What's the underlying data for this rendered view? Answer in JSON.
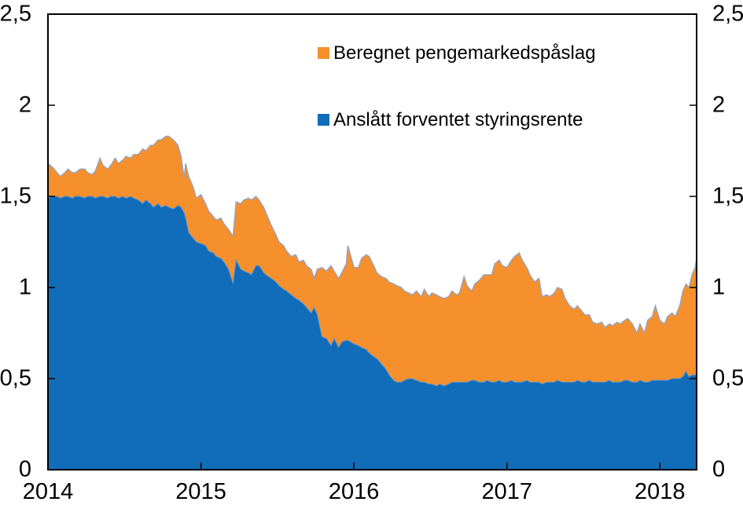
{
  "chart_data": {
    "type": "area",
    "stacked": true,
    "title": "",
    "x_unit": "decimal_year",
    "xlim": [
      2014,
      2018.24
    ],
    "ylim": [
      0,
      2.5
    ],
    "x_ticks": [
      2015,
      2016,
      2017,
      2018
    ],
    "x_tick_labels": [
      "2014",
      "2015",
      "2016",
      "2017",
      "2018"
    ],
    "x_tick_label_positions": [
      2014,
      2015,
      2016,
      2017,
      2018
    ],
    "y_ticks": [
      0.5,
      1,
      1.5,
      2
    ],
    "y_tick_labels": [
      "0",
      "0,5",
      "1",
      "1,5",
      "2",
      "2,5"
    ],
    "y_tick_label_values": [
      0,
      0.5,
      1,
      1.5,
      2,
      2.5
    ],
    "grid": false,
    "legend_position": "top-center-inside",
    "series": [
      {
        "name": "Anslått forventet styringsrente",
        "color": "#116CB9",
        "edge_color": "#4E93D3",
        "role": "base"
      },
      {
        "name": "Beregnet pengemarkedspåslag",
        "color": "#F6902D",
        "edge_color": "#97A3BB",
        "role": "stacked_on_base"
      }
    ],
    "point_format": [
      "year",
      "anslatt_forventet_styringsrente",
      "total_pengemarkedsrente"
    ],
    "points": [
      [
        2014.0,
        1.49,
        1.68
      ],
      [
        2014.03,
        1.5,
        1.66
      ],
      [
        2014.06,
        1.5,
        1.63
      ],
      [
        2014.08,
        1.49,
        1.61
      ],
      [
        2014.11,
        1.5,
        1.63
      ],
      [
        2014.13,
        1.5,
        1.65
      ],
      [
        2014.16,
        1.49,
        1.63
      ],
      [
        2014.18,
        1.5,
        1.63
      ],
      [
        2014.21,
        1.5,
        1.65
      ],
      [
        2014.24,
        1.49,
        1.65
      ],
      [
        2014.26,
        1.5,
        1.63
      ],
      [
        2014.29,
        1.5,
        1.62
      ],
      [
        2014.31,
        1.49,
        1.64
      ],
      [
        2014.34,
        1.5,
        1.71
      ],
      [
        2014.36,
        1.5,
        1.67
      ],
      [
        2014.39,
        1.49,
        1.65
      ],
      [
        2014.41,
        1.5,
        1.67
      ],
      [
        2014.44,
        1.5,
        1.71
      ],
      [
        2014.46,
        1.49,
        1.68
      ],
      [
        2014.49,
        1.5,
        1.7
      ],
      [
        2014.51,
        1.49,
        1.72
      ],
      [
        2014.54,
        1.5,
        1.71
      ],
      [
        2014.56,
        1.49,
        1.73
      ],
      [
        2014.59,
        1.48,
        1.73
      ],
      [
        2014.62,
        1.46,
        1.76
      ],
      [
        2014.64,
        1.48,
        1.75
      ],
      [
        2014.67,
        1.46,
        1.78
      ],
      [
        2014.69,
        1.44,
        1.78
      ],
      [
        2014.72,
        1.46,
        1.81
      ],
      [
        2014.74,
        1.44,
        1.81
      ],
      [
        2014.77,
        1.45,
        1.83
      ],
      [
        2014.79,
        1.44,
        1.83
      ],
      [
        2014.82,
        1.43,
        1.81
      ],
      [
        2014.85,
        1.45,
        1.78
      ],
      [
        2014.87,
        1.44,
        1.72
      ],
      [
        2014.89,
        1.41,
        1.6
      ],
      [
        2014.9,
        1.38,
        1.68
      ],
      [
        2014.92,
        1.3,
        1.61
      ],
      [
        2014.95,
        1.27,
        1.55
      ],
      [
        2014.97,
        1.25,
        1.49
      ],
      [
        2015.0,
        1.24,
        1.51
      ],
      [
        2015.03,
        1.23,
        1.46
      ],
      [
        2015.05,
        1.2,
        1.42
      ],
      [
        2015.08,
        1.19,
        1.39
      ],
      [
        2015.1,
        1.17,
        1.37
      ],
      [
        2015.13,
        1.16,
        1.38
      ],
      [
        2015.15,
        1.14,
        1.35
      ],
      [
        2015.18,
        1.1,
        1.32
      ],
      [
        2015.21,
        1.02,
        1.28
      ],
      [
        2015.23,
        1.15,
        1.47
      ],
      [
        2015.26,
        1.1,
        1.46
      ],
      [
        2015.28,
        1.09,
        1.48
      ],
      [
        2015.31,
        1.08,
        1.49
      ],
      [
        2015.33,
        1.07,
        1.48
      ],
      [
        2015.36,
        1.12,
        1.5
      ],
      [
        2015.38,
        1.12,
        1.48
      ],
      [
        2015.41,
        1.08,
        1.44
      ],
      [
        2015.44,
        1.06,
        1.38
      ],
      [
        2015.46,
        1.05,
        1.34
      ],
      [
        2015.49,
        1.03,
        1.29
      ],
      [
        2015.51,
        1.01,
        1.25
      ],
      [
        2015.54,
        0.99,
        1.23
      ],
      [
        2015.56,
        0.98,
        1.2
      ],
      [
        2015.59,
        0.96,
        1.17
      ],
      [
        2015.62,
        0.94,
        1.18
      ],
      [
        2015.64,
        0.93,
        1.14
      ],
      [
        2015.67,
        0.91,
        1.15
      ],
      [
        2015.69,
        0.89,
        1.12
      ],
      [
        2015.72,
        0.86,
        1.1
      ],
      [
        2015.74,
        0.89,
        1.05
      ],
      [
        2015.76,
        0.85,
        1.1
      ],
      [
        2015.79,
        0.73,
        1.11
      ],
      [
        2015.82,
        0.72,
        1.09
      ],
      [
        2015.85,
        0.68,
        1.12
      ],
      [
        2015.87,
        0.72,
        1.09
      ],
      [
        2015.9,
        0.67,
        1.05
      ],
      [
        2015.92,
        0.7,
        1.08
      ],
      [
        2015.95,
        0.71,
        1.13
      ],
      [
        2015.96,
        0.71,
        1.23
      ],
      [
        2015.98,
        0.7,
        1.17
      ],
      [
        2016.0,
        0.69,
        1.11
      ],
      [
        2016.03,
        0.68,
        1.11
      ],
      [
        2016.05,
        0.67,
        1.16
      ],
      [
        2016.08,
        0.66,
        1.18
      ],
      [
        2016.1,
        0.64,
        1.17
      ],
      [
        2016.13,
        0.62,
        1.12
      ],
      [
        2016.15,
        0.61,
        1.08
      ],
      [
        2016.18,
        0.58,
        1.06
      ],
      [
        2016.21,
        0.55,
        1.05
      ],
      [
        2016.23,
        0.52,
        1.03
      ],
      [
        2016.26,
        0.49,
        1.02
      ],
      [
        2016.28,
        0.48,
        1.01
      ],
      [
        2016.31,
        0.48,
        1.0
      ],
      [
        2016.33,
        0.49,
        0.98
      ],
      [
        2016.36,
        0.5,
        0.97
      ],
      [
        2016.38,
        0.5,
        0.96
      ],
      [
        2016.41,
        0.49,
        0.98
      ],
      [
        2016.44,
        0.48,
        0.95
      ],
      [
        2016.46,
        0.48,
        0.99
      ],
      [
        2016.49,
        0.47,
        0.95
      ],
      [
        2016.51,
        0.47,
        0.97
      ],
      [
        2016.54,
        0.46,
        0.96
      ],
      [
        2016.56,
        0.47,
        0.95
      ],
      [
        2016.59,
        0.46,
        0.94
      ],
      [
        2016.62,
        0.47,
        0.95
      ],
      [
        2016.64,
        0.48,
        0.98
      ],
      [
        2016.67,
        0.48,
        0.96
      ],
      [
        2016.69,
        0.48,
        0.97
      ],
      [
        2016.72,
        0.48,
        1.06
      ],
      [
        2016.74,
        0.48,
        1.01
      ],
      [
        2016.77,
        0.49,
        0.98
      ],
      [
        2016.79,
        0.49,
        1.02
      ],
      [
        2016.82,
        0.48,
        1.04
      ],
      [
        2016.85,
        0.48,
        1.07
      ],
      [
        2016.87,
        0.49,
        1.07
      ],
      [
        2016.9,
        0.48,
        1.07
      ],
      [
        2016.92,
        0.48,
        1.13
      ],
      [
        2016.95,
        0.49,
        1.15
      ],
      [
        2016.97,
        0.48,
        1.12
      ],
      [
        2017.0,
        0.48,
        1.11
      ],
      [
        2017.03,
        0.49,
        1.15
      ],
      [
        2017.05,
        0.48,
        1.17
      ],
      [
        2017.08,
        0.48,
        1.19
      ],
      [
        2017.1,
        0.48,
        1.15
      ],
      [
        2017.13,
        0.49,
        1.11
      ],
      [
        2017.15,
        0.48,
        1.07
      ],
      [
        2017.18,
        0.48,
        1.03
      ],
      [
        2017.21,
        0.48,
        1.05
      ],
      [
        2017.23,
        0.47,
        0.95
      ],
      [
        2017.26,
        0.48,
        0.96
      ],
      [
        2017.28,
        0.48,
        0.95
      ],
      [
        2017.31,
        0.48,
        0.97
      ],
      [
        2017.33,
        0.49,
        1.0
      ],
      [
        2017.36,
        0.48,
        0.99
      ],
      [
        2017.38,
        0.48,
        0.94
      ],
      [
        2017.41,
        0.48,
        0.9
      ],
      [
        2017.44,
        0.48,
        0.88
      ],
      [
        2017.46,
        0.49,
        0.9
      ],
      [
        2017.49,
        0.48,
        0.87
      ],
      [
        2017.51,
        0.48,
        0.85
      ],
      [
        2017.54,
        0.49,
        0.85
      ],
      [
        2017.56,
        0.48,
        0.81
      ],
      [
        2017.59,
        0.48,
        0.8
      ],
      [
        2017.62,
        0.48,
        0.81
      ],
      [
        2017.64,
        0.48,
        0.78
      ],
      [
        2017.67,
        0.49,
        0.8
      ],
      [
        2017.69,
        0.48,
        0.79
      ],
      [
        2017.72,
        0.48,
        0.81
      ],
      [
        2017.74,
        0.48,
        0.8
      ],
      [
        2017.77,
        0.49,
        0.82
      ],
      [
        2017.79,
        0.49,
        0.83
      ],
      [
        2017.82,
        0.48,
        0.8
      ],
      [
        2017.85,
        0.48,
        0.75
      ],
      [
        2017.87,
        0.49,
        0.8
      ],
      [
        2017.9,
        0.48,
        0.75
      ],
      [
        2017.92,
        0.48,
        0.82
      ],
      [
        2017.95,
        0.49,
        0.84
      ],
      [
        2017.97,
        0.49,
        0.9
      ],
      [
        2018.0,
        0.49,
        0.82
      ],
      [
        2018.03,
        0.49,
        0.8
      ],
      [
        2018.05,
        0.49,
        0.84
      ],
      [
        2018.08,
        0.5,
        0.86
      ],
      [
        2018.1,
        0.5,
        0.84
      ],
      [
        2018.13,
        0.5,
        0.9
      ],
      [
        2018.15,
        0.51,
        0.98
      ],
      [
        2018.17,
        0.54,
        1.02
      ],
      [
        2018.19,
        0.51,
        1.0
      ],
      [
        2018.21,
        0.52,
        1.07
      ],
      [
        2018.23,
        0.52,
        1.11
      ],
      [
        2018.24,
        0.52,
        1.16
      ]
    ]
  },
  "legend": {
    "items": [
      {
        "label": "Beregnet pengemarkedspåslag",
        "color": "#F6902D"
      },
      {
        "label": "Anslått forventet styringsrente",
        "color": "#116CB9"
      }
    ]
  },
  "axes": {
    "left_labels": [
      "0",
      "0,5",
      "1",
      "1,5",
      "2",
      "2,5"
    ],
    "right_labels": [
      "0",
      "0,5",
      "1",
      "1,5",
      "2",
      "2,5"
    ],
    "bottom_labels": [
      "2014",
      "2015",
      "2016",
      "2017",
      "2018"
    ],
    "axis_color": "#000000"
  }
}
